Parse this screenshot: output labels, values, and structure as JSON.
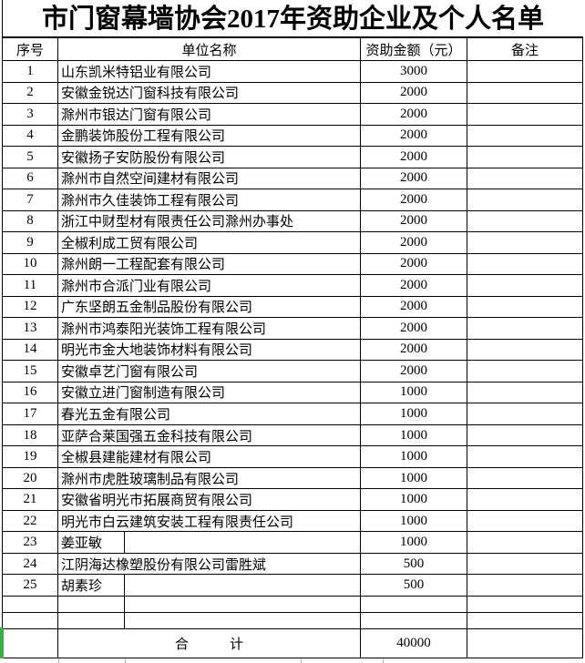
{
  "title": "市门窗幕墙协会2017年资助企业及个人名单",
  "columns": {
    "no": "序号",
    "name": "单位名称",
    "amount": "资助金额（元）",
    "remark": "备注"
  },
  "rows": [
    {
      "no": "1",
      "name": "山东凯米特铝业有限公司",
      "amount": "3000",
      "split": false
    },
    {
      "no": "2",
      "name": "安徽金锐达门窗科技有限公司",
      "amount": "2000",
      "split": false
    },
    {
      "no": "3",
      "name": "滁州市银达门窗有限公司",
      "amount": "2000",
      "split": false
    },
    {
      "no": "4",
      "name": "金鹏装饰股份工程有限公司",
      "amount": "2000",
      "split": false
    },
    {
      "no": "5",
      "name": "安徽扬子安防股份有限公司",
      "amount": "2000",
      "split": false
    },
    {
      "no": "6",
      "name": "滁州市自然空间建材有限公司",
      "amount": "2000",
      "split": false
    },
    {
      "no": "7",
      "name": "滁州市久佳装饰工程有限公司",
      "amount": "2000",
      "split": false
    },
    {
      "no": "8",
      "name": "浙江中财型材有限责任公司滁州办事处",
      "amount": "2000",
      "split": false
    },
    {
      "no": "9",
      "name": "全椒利成工贸有限公司",
      "amount": "2000",
      "split": false
    },
    {
      "no": "10",
      "name": "滁州朗一工程配套有限公司",
      "amount": "2000",
      "split": false
    },
    {
      "no": "11",
      "name": "滁州市合派门业有限公司",
      "amount": "2000",
      "split": false
    },
    {
      "no": "12",
      "name": "广东坚朗五金制品股份有限公司",
      "amount": "2000",
      "split": false
    },
    {
      "no": "13",
      "name": "滁州市鸿泰阳光装饰工程有限公司",
      "amount": "2000",
      "split": false
    },
    {
      "no": "14",
      "name": "明光市金大地装饰材料有限公司",
      "amount": "2000",
      "split": false
    },
    {
      "no": "15",
      "name": "安徽卓艺门窗有限公司",
      "amount": "2000",
      "split": false
    },
    {
      "no": "16",
      "name": "安徽立进门窗制造有限公司",
      "amount": "1000",
      "split": false
    },
    {
      "no": "17",
      "name": "春光五金有限公司",
      "amount": "1000",
      "split": false
    },
    {
      "no": "18",
      "name": "亚萨合莱国强五金科技有限公司",
      "amount": "1000",
      "split": false
    },
    {
      "no": "19",
      "name": "全椒县建能建材有限公司",
      "amount": "1000",
      "split": false
    },
    {
      "no": "20",
      "name": "滁州市虎胜玻璃制品有限公司",
      "amount": "1000",
      "split": false
    },
    {
      "no": "21",
      "name": "安徽省明光市拓展商贸有限公司",
      "amount": "1000",
      "split": false
    },
    {
      "no": "22",
      "name": "明光市白云建筑安装工程有限责任公司",
      "amount": "1000",
      "split": false
    },
    {
      "no": "23",
      "name": "姜亚敏",
      "amount": "1000",
      "split": true
    },
    {
      "no": "24",
      "name": "江阴海达橡塑股份有限公司雷胜斌",
      "amount": "500",
      "split": false
    },
    {
      "no": "25",
      "name": "胡素珍",
      "amount": "500",
      "split": true
    },
    {
      "no": "",
      "name": "",
      "amount": "",
      "split": true
    },
    {
      "no": "",
      "name": "",
      "amount": "",
      "split": true
    }
  ],
  "total": {
    "label": "合　　　计",
    "amount": "40000"
  },
  "colors": {
    "border": "#000000",
    "selection_green": "#3aad44",
    "gridline_gray": "#b5b5b5"
  }
}
